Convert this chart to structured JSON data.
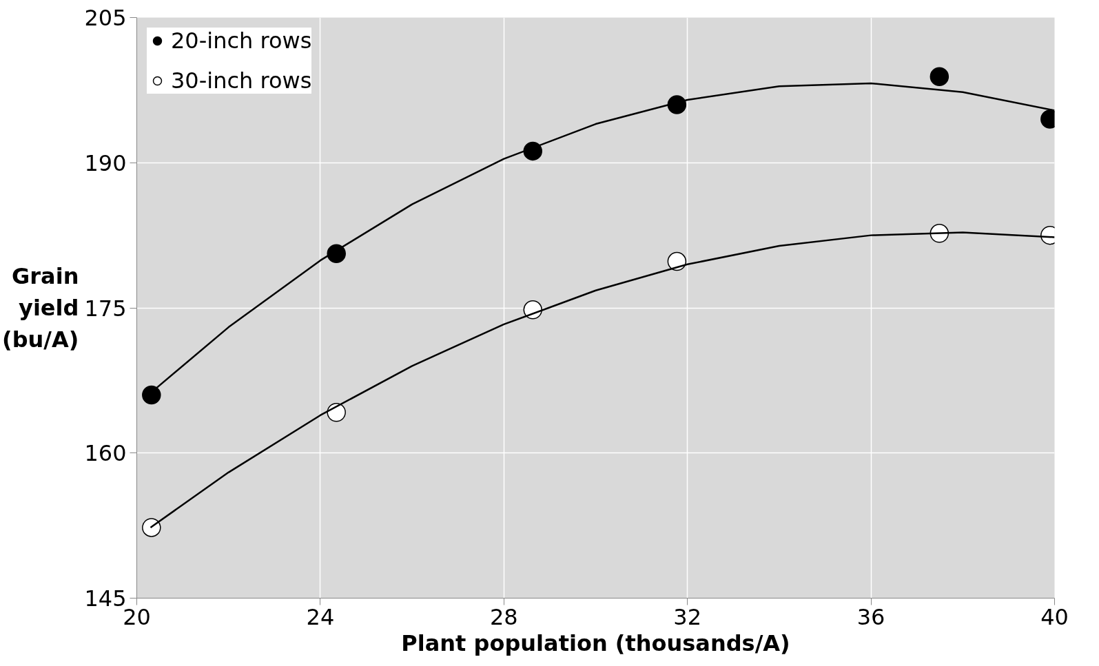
{
  "chart_data": {
    "type": "scatter",
    "xlabel": "Plant population (thousands/A)",
    "ylabel": "Grain yield (bu/A)",
    "xlim": [
      20,
      40
    ],
    "xticks": [
      20,
      24,
      28,
      32,
      36,
      40
    ],
    "ylim": [
      145,
      205
    ],
    "yticks": [
      145,
      160,
      175,
      190,
      205
    ],
    "grid": true,
    "legend": "top left",
    "series": [
      {
        "name": "20-inch rows",
        "color": "#000000",
        "marker": "circle",
        "x": [
          20.32,
          24.35,
          28.63,
          31.77,
          37.49,
          39.9
        ],
        "values": [
          166.0,
          180.6,
          191.2,
          196.0,
          198.9,
          194.5
        ]
      },
      {
        "name": "30-inch rows",
        "color": "#ffffff",
        "marker": "circle",
        "x": [
          20.32,
          24.35,
          28.63,
          31.77,
          37.49,
          39.9
        ],
        "values": [
          152.3,
          164.2,
          174.8,
          179.8,
          182.7,
          182.5
        ]
      },
      {
        "type": "line",
        "marker": "none",
        "color": "#000000",
        "x": [
          20.3,
          22,
          24,
          26,
          28,
          30,
          32,
          34,
          36,
          38,
          40
        ],
        "values": [
          166.2,
          173.0,
          179.9,
          185.7,
          190.4,
          194.0,
          196.5,
          197.9,
          198.2,
          197.3,
          195.4
        ]
      },
      {
        "type": "line",
        "marker": "none",
        "color": "#000000",
        "x": [
          20.3,
          22,
          24,
          26,
          28,
          30,
          32,
          34,
          36,
          38,
          40
        ],
        "values": [
          152.3,
          158.0,
          163.9,
          169.0,
          173.3,
          176.8,
          179.5,
          181.4,
          182.5,
          182.8,
          182.3
        ]
      }
    ]
  }
}
